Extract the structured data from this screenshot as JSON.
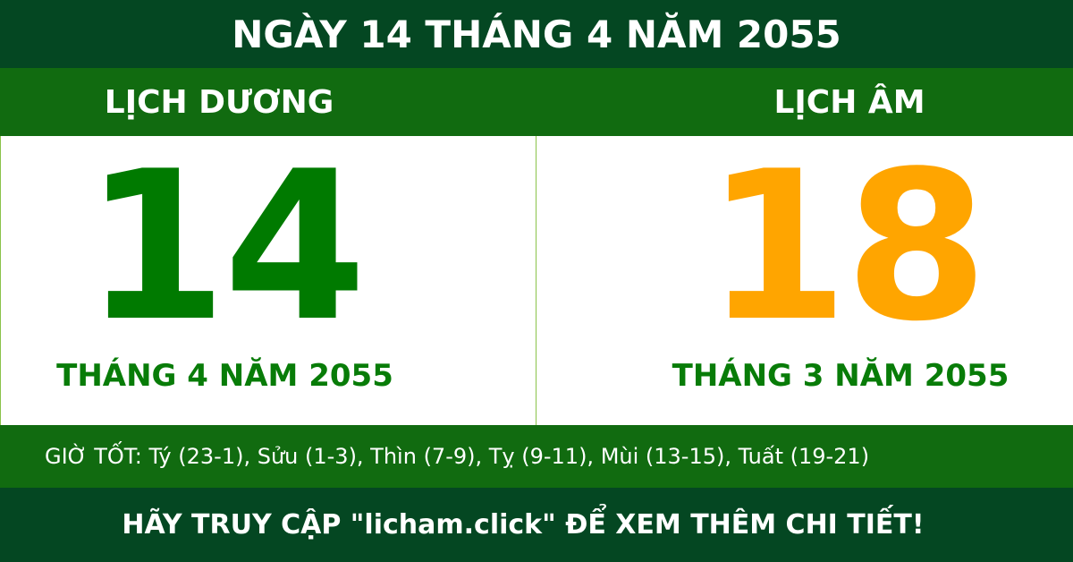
{
  "title": "NGÀY 14 THÁNG 4 NĂM 2055",
  "solar": {
    "label": "LỊCH DƯƠNG",
    "day": "14",
    "month_year": "THÁNG 4 NĂM 2055"
  },
  "lunar": {
    "label": "LỊCH ÂM",
    "day": "18",
    "month_year": "THÁNG 3 NĂM 2055"
  },
  "good_hours": "GIỜ TỐT: Tý (23-1), Sửu (1-3), Thìn (7-9), Tỵ (9-11), Mùi (13-15), Tuất (19-21)",
  "footer": "HÃY TRUY CẬP \"licham.click\" ĐỂ XEM THÊM CHI TIẾT!",
  "colors": {
    "dark_green": "#044722",
    "band_green": "#116b10",
    "solar_green": "#007a00",
    "lunar_orange": "#ffa500"
  }
}
